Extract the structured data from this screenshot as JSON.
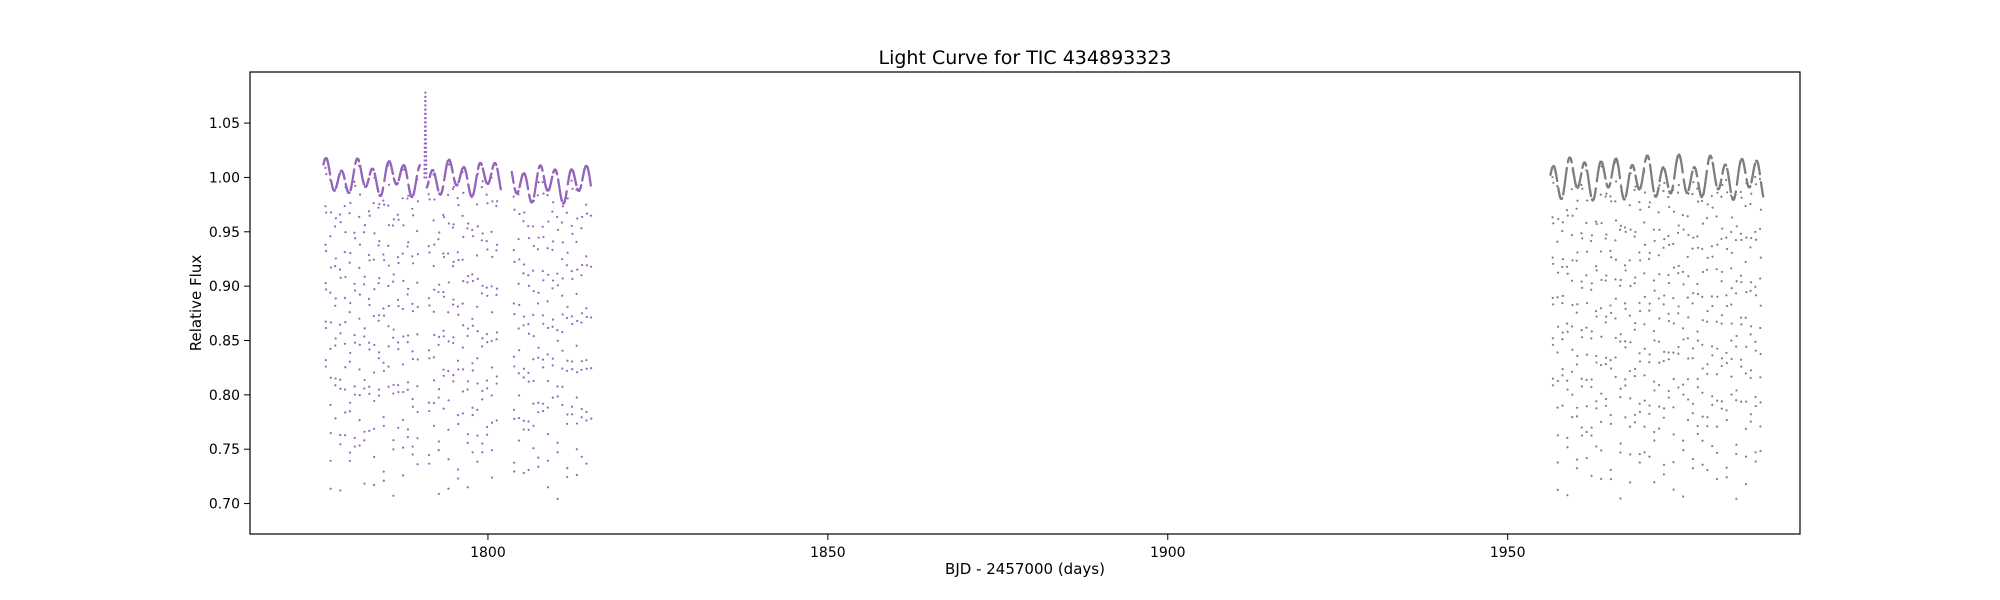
{
  "chart_data": {
    "type": "scatter",
    "title": "Light Curve for TIC 434893323",
    "xlabel": "BJD - 2457000 (days)",
    "ylabel": "Relative Flux",
    "xlim": [
      1765,
      1993
    ],
    "ylim": [
      0.672,
      1.097
    ],
    "xticks": [
      1800,
      1850,
      1900,
      1950
    ],
    "yticks": [
      0.7,
      0.75,
      0.8,
      0.85,
      0.9,
      0.95,
      1.0,
      1.05
    ],
    "grid": false,
    "legend": "none",
    "eclipse_depth_min": 0.7,
    "segments": [
      {
        "color": "#9467bd",
        "x_start": 1775.8,
        "x_end": 1790.0,
        "baseline": 1.0,
        "amplitude": 0.012
      },
      {
        "color": "#9467bd",
        "x_start": 1791.0,
        "x_end": 1801.9,
        "baseline": 1.0,
        "amplitude": 0.012
      },
      {
        "color": "#9467bd",
        "x_start": 1803.5,
        "x_end": 1815.2,
        "baseline": 0.995,
        "amplitude": 0.013
      },
      {
        "color": "#7f7f7f",
        "x_start": 1956.3,
        "x_end": 1987.6,
        "baseline": 1.0,
        "amplitude": 0.015
      }
    ],
    "flare": {
      "x": 1790.8,
      "y_peak": 1.078
    }
  }
}
